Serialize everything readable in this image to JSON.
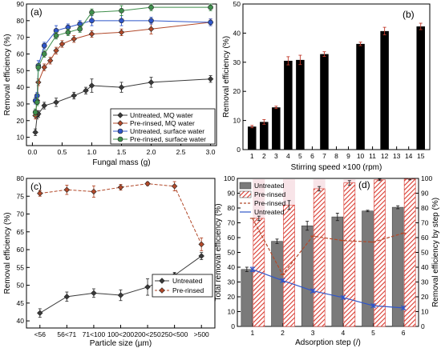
{
  "colors": {
    "black": "#3a3a3a",
    "brown": "#b2492a",
    "blue": "#2f56c9",
    "green": "#3f8f4c",
    "errorbar": "#c0392b",
    "hatch": "#d93a2f",
    "bar_gray": "#7a7a7a",
    "pink_band": "#f4d2d8"
  },
  "chart_data": [
    {
      "panel": "(a)",
      "type": "line",
      "xlabel": "Fungal mass (g)",
      "ylabel": "Removal efficiency (%)",
      "xlim": [
        -0.1,
        3.1
      ],
      "ylim": [
        5,
        90
      ],
      "xticks": [
        "0.0",
        "0.5",
        "1.0",
        "1.5",
        "2.0",
        "2.5",
        "3.0"
      ],
      "xtick_values": [
        0,
        0.5,
        1,
        1.5,
        2,
        2.5,
        3
      ],
      "yticks": [
        "10",
        "20",
        "30",
        "40",
        "50",
        "60",
        "70",
        "80",
        "90"
      ],
      "ytick_values": [
        10,
        20,
        30,
        40,
        50,
        60,
        70,
        80,
        90
      ],
      "legend_position": "bottom-right",
      "series": [
        {
          "name": "Untreated, MQ water",
          "color": "black",
          "marker": "diamond",
          "x": [
            0.05,
            0.08,
            0.1,
            0.2,
            0.4,
            0.7,
            0.9,
            1.0,
            1.5,
            2.0,
            3.0
          ],
          "y": [
            13,
            23,
            24,
            29,
            31,
            35,
            38,
            41,
            40,
            43,
            45
          ],
          "err": [
            2,
            2,
            2,
            2,
            2.5,
            2,
            2,
            4,
            3,
            3,
            2
          ]
        },
        {
          "name": "Pre-rinsed, MQ water",
          "color": "brown",
          "marker": "diamond",
          "x": [
            0.05,
            0.08,
            0.1,
            0.2,
            0.3,
            0.4,
            0.5,
            0.7,
            1.0,
            1.5,
            2.0,
            3.0
          ],
          "y": [
            23,
            32,
            43,
            52,
            56,
            62,
            66,
            69,
            72,
            73,
            75,
            79
          ],
          "err": [
            2,
            2,
            2,
            2,
            2,
            2,
            2,
            2,
            2,
            2,
            3,
            2
          ]
        },
        {
          "name": "Untreated, surface water",
          "color": "blue",
          "marker": "circle",
          "x": [
            0.05,
            0.08,
            0.1,
            0.2,
            0.4,
            0.6,
            0.8,
            1.0,
            1.5,
            2.0,
            3.0
          ],
          "y": [
            32,
            35,
            53,
            65,
            74,
            76,
            78,
            80,
            80,
            80,
            79
          ],
          "err": [
            2,
            2,
            3,
            2,
            3,
            2,
            2,
            3,
            3,
            2,
            2
          ]
        },
        {
          "name": "Pre-rinsed, surface water",
          "color": "green",
          "marker": "circle",
          "x": [
            0.05,
            0.08,
            0.1,
            0.2,
            0.4,
            0.6,
            0.8,
            1.0,
            1.5,
            2.0,
            3.0
          ],
          "y": [
            25,
            31,
            52,
            60,
            71,
            73,
            75,
            85,
            86,
            88,
            88
          ],
          "err": [
            2,
            2,
            2,
            2,
            2,
            2,
            2,
            2,
            3,
            2,
            2
          ]
        }
      ]
    },
    {
      "panel": "(b)",
      "type": "bar",
      "xlabel": "Stirring speed ×100 (rpm)",
      "ylabel": "Removal efficiency (%)",
      "ylim": [
        0,
        50
      ],
      "categories": [
        "1",
        "2",
        "3",
        "4",
        "5",
        "6",
        "7",
        "8",
        "9",
        "10",
        "11",
        "12",
        "13",
        "14",
        "15"
      ],
      "yticks": [
        "0",
        "10",
        "20",
        "30",
        "40",
        "50"
      ],
      "ytick_values": [
        0,
        10,
        20,
        30,
        40,
        50
      ],
      "values": [
        7.9,
        9.5,
        14.5,
        30.5,
        30.8,
        null,
        32.8,
        null,
        null,
        36.3,
        null,
        40.7,
        null,
        null,
        42.3
      ],
      "err": [
        0.4,
        0.8,
        0.4,
        1.4,
        1.6,
        null,
        0.8,
        null,
        null,
        0.6,
        null,
        1.3,
        null,
        null,
        1.1
      ]
    },
    {
      "panel": "(c)",
      "type": "line",
      "xlabel": "Particle size (µm)",
      "ylabel": "Removal efficiency (%)",
      "ylim": [
        38,
        80
      ],
      "categories": [
        "<56",
        "56<71",
        "71<100",
        "100<200",
        "200<250",
        "250<500",
        ">500"
      ],
      "yticks": [
        "40",
        "45",
        "50",
        "55",
        "60",
        "65",
        "70",
        "75",
        "80"
      ],
      "ytick_values": [
        40,
        45,
        50,
        55,
        60,
        65,
        70,
        75,
        80
      ],
      "legend_position": "bottom-right",
      "series": [
        {
          "name": "Untreated",
          "color": "black",
          "marker": "diamond",
          "values": [
            42.2,
            46.8,
            47.8,
            47.2,
            49.5,
            52.8,
            58.2
          ],
          "err": [
            1.2,
            1.3,
            1.2,
            1.5,
            2.3,
            0.8,
            1.0
          ]
        },
        {
          "name": "Pre-rinsed",
          "color": "brown",
          "marker": "diamond",
          "dashed": true,
          "values": [
            75.8,
            76.8,
            76.3,
            77.5,
            78.5,
            77.8,
            61.5
          ],
          "err": [
            0.8,
            1.3,
            1.6,
            0.8,
            0.5,
            1.3,
            1.8
          ]
        }
      ]
    },
    {
      "panel": "(d)",
      "type": "bar",
      "xlabel": "Adsorption step (/)",
      "ylabel": "Total removal efficiency (%)",
      "ylabel_right": "Removal efficiency by step (%)",
      "ylim": [
        0,
        100
      ],
      "categories": [
        "1",
        "2",
        "3",
        "4",
        "5",
        "6"
      ],
      "yticks": [
        "0",
        "10",
        "20",
        "30",
        "40",
        "50",
        "60",
        "70",
        "80",
        "90",
        "100"
      ],
      "ytick_values": [
        0,
        10,
        20,
        30,
        40,
        50,
        60,
        70,
        80,
        90,
        100
      ],
      "legend_position": "top-left",
      "series": [
        {
          "name": "Untreated",
          "kind": "bar",
          "color": "bar_gray",
          "values": [
            38.5,
            57.5,
            68,
            74,
            78,
            80.5
          ],
          "err": [
            1.5,
            1.5,
            3,
            2.5,
            0.5,
            1
          ]
        },
        {
          "name": "Pre-rinsed",
          "kind": "bar-hatched",
          "color": "hatch",
          "values": [
            73,
            82,
            93,
            97,
            99,
            99.5
          ],
          "err": [
            1.5,
            3,
            1.5,
            1.5,
            0.5,
            0.5
          ]
        },
        {
          "name": "Pre-rinsed",
          "kind": "line-dashed",
          "color": "brown",
          "values": [
            73,
            35,
            61,
            58,
            57,
            63
          ],
          "err": []
        },
        {
          "name": "Untreated",
          "kind": "line",
          "color": "blue",
          "values": [
            38.5,
            31,
            24,
            19.5,
            14,
            12.5
          ],
          "err": [
            1.5,
            1,
            1,
            1,
            1,
            1
          ]
        }
      ]
    }
  ]
}
